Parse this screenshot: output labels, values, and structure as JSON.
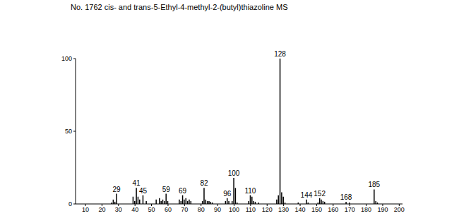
{
  "chart_data": {
    "type": "bar",
    "title": "No. 1762  cis- and trans-5-Ethyl-4-methyl-2-(butyl)thiazoline MS",
    "x": [
      26,
      27,
      28,
      29,
      39,
      40,
      41,
      42,
      43,
      45,
      47,
      53,
      55,
      56,
      57,
      58,
      59,
      60,
      67,
      68,
      69,
      70,
      71,
      72,
      73,
      74,
      81,
      82,
      83,
      84,
      85,
      86,
      87,
      95,
      96,
      97,
      99,
      100,
      101,
      102,
      109,
      110,
      111,
      112,
      113,
      115,
      126,
      127,
      128,
      129,
      130,
      131,
      139,
      144,
      145,
      151,
      152,
      153,
      154,
      155,
      168,
      170,
      185,
      186,
      187
    ],
    "values": [
      1,
      3,
      1.5,
      7,
      5,
      2,
      11,
      5,
      3,
      6,
      2,
      3,
      4,
      2,
      3,
      2,
      7,
      2,
      3,
      2,
      6,
      3,
      4,
      2,
      3,
      2,
      2,
      11,
      3,
      2,
      2,
      1.5,
      1,
      2,
      4,
      2,
      2,
      18,
      11,
      1,
      2,
      6,
      5,
      2,
      1.5,
      1,
      3,
      6,
      100,
      8,
      5,
      1,
      1,
      3,
      1,
      1,
      4,
      3,
      2,
      1.5,
      1.5,
      1,
      10,
      2,
      1
    ],
    "peak_labels": [
      29,
      41,
      45,
      59,
      69,
      82,
      96,
      100,
      110,
      128,
      144,
      152,
      168,
      185
    ],
    "color": "#000000",
    "xlim": [
      4,
      202
    ],
    "xticks": [
      10,
      20,
      30,
      40,
      50,
      60,
      70,
      80,
      90,
      100,
      110,
      120,
      130,
      140,
      150,
      160,
      170,
      180,
      190,
      200
    ],
    "ylim": [
      0,
      100
    ],
    "yticks": [
      0,
      50,
      100
    ],
    "grid": false
  }
}
